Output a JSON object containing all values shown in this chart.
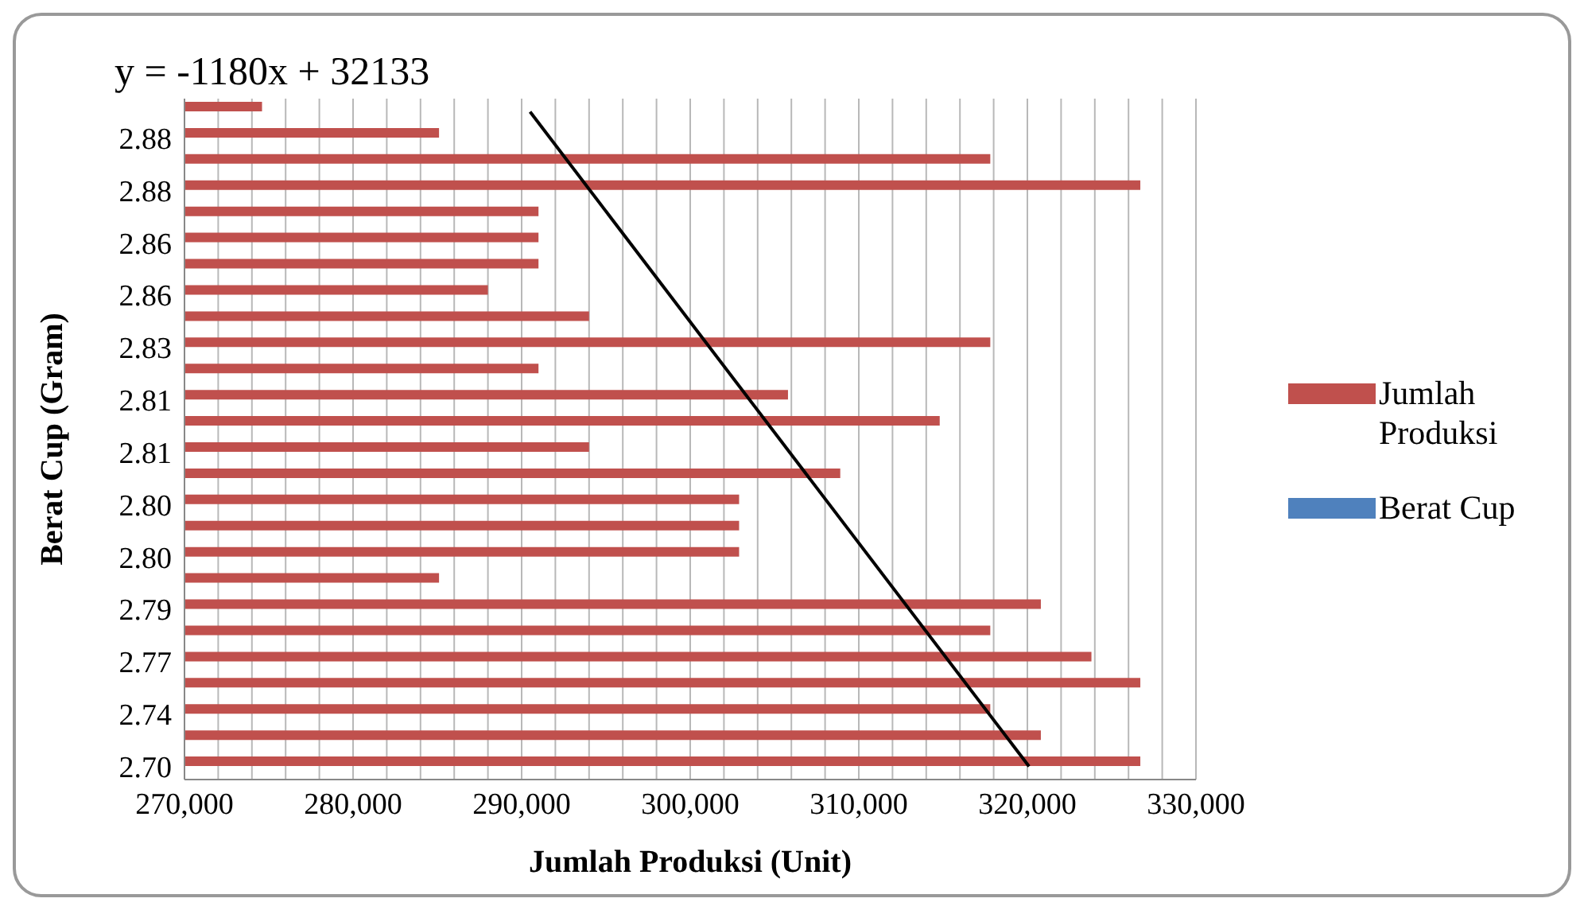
{
  "chart_data": {
    "type": "bar",
    "orientation": "horizontal",
    "xlabel": "Jumlah Produksi (Unit)",
    "ylabel": "Berat Cup (Gram)",
    "annotations": [
      "y = -1180x + 32133"
    ],
    "categories": [
      null,
      "2.88",
      null,
      "2.88",
      null,
      "2.86",
      null,
      "2.86",
      null,
      "2.83",
      null,
      "2.81",
      null,
      "2.81",
      null,
      "2.80",
      null,
      "2.80",
      null,
      "2.79",
      null,
      "2.77",
      null,
      "2.74",
      null,
      "2.70"
    ],
    "series": [
      {
        "name": "Jumlah Produksi",
        "color": "#c0504d",
        "values": [
          274600,
          285100,
          317800,
          326700,
          291000,
          291000,
          291000,
          288000,
          294000,
          317800,
          291000,
          305800,
          314800,
          294000,
          308900,
          302900,
          302900,
          302900,
          285100,
          320800,
          317800,
          323800,
          326700,
          317800,
          320800,
          326700
        ]
      },
      {
        "name": "Berat Cup",
        "color": "#4f81bd",
        "values": [
          null,
          null,
          null,
          null,
          null,
          null,
          null,
          null,
          null,
          null,
          null,
          null,
          null,
          null,
          null,
          null,
          null,
          null,
          null,
          null,
          null,
          null,
          null,
          null,
          null,
          null
        ]
      },
      {
        "type": "line",
        "color": "#000000",
        "values": [
          290500,
          null,
          null,
          null,
          null,
          null,
          null,
          null,
          null,
          null,
          null,
          null,
          null,
          null,
          null,
          null,
          null,
          null,
          null,
          null,
          null,
          null,
          null,
          null,
          null,
          320100
        ]
      }
    ],
    "xlim": [
      270000,
      330000
    ],
    "xticks": [
      {
        "value": 270000,
        "label": "270,000"
      },
      {
        "value": 272000,
        "label": null
      },
      {
        "value": 274000,
        "label": null
      },
      {
        "value": 276000,
        "label": null
      },
      {
        "value": 278000,
        "label": null
      },
      {
        "value": 280000,
        "label": "280,000"
      },
      {
        "value": 282000,
        "label": null
      },
      {
        "value": 284000,
        "label": null
      },
      {
        "value": 286000,
        "label": null
      },
      {
        "value": 288000,
        "label": null
      },
      {
        "value": 290000,
        "label": "290,000"
      },
      {
        "value": 292000,
        "label": null
      },
      {
        "value": 294000,
        "label": null
      },
      {
        "value": 296000,
        "label": null
      },
      {
        "value": 298000,
        "label": null
      },
      {
        "value": 300000,
        "label": "300,000"
      },
      {
        "value": 302000,
        "label": null
      },
      {
        "value": 304000,
        "label": null
      },
      {
        "value": 306000,
        "label": null
      },
      {
        "value": 308000,
        "label": null
      },
      {
        "value": 310000,
        "label": "310,000"
      },
      {
        "value": 312000,
        "label": null
      },
      {
        "value": 314000,
        "label": null
      },
      {
        "value": 316000,
        "label": null
      },
      {
        "value": 318000,
        "label": null
      },
      {
        "value": 320000,
        "label": "320,000"
      },
      {
        "value": 322000,
        "label": null
      },
      {
        "value": 324000,
        "label": null
      },
      {
        "value": 326000,
        "label": null
      },
      {
        "value": 328000,
        "label": null
      },
      {
        "value": 330000,
        "label": "330,000"
      }
    ],
    "grid": "x",
    "legend": "right",
    "marker": "none",
    "line_style": "solid"
  }
}
